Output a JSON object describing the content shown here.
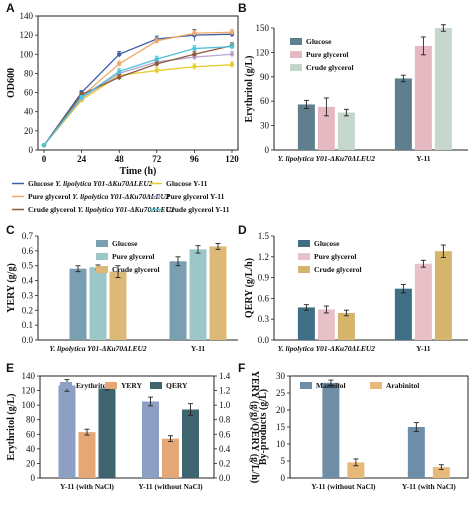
{
  "chart_data": [
    {
      "panel": "A",
      "type": "line",
      "xlabel": "Time (h)",
      "ylabel": "OD600",
      "x": [
        0,
        24,
        48,
        72,
        96,
        120
      ],
      "xlim": [
        0,
        120
      ],
      "ylim": [
        0,
        140
      ],
      "yticks": [
        0,
        20,
        40,
        60,
        80,
        100,
        120,
        140
      ],
      "xticks": [
        0,
        24,
        48,
        72,
        96,
        120
      ],
      "series": [
        {
          "name": "Glucose  Y. lipolytica Y01-ΔKu70ΔLEU2",
          "color": "#3a5fa8",
          "marker": "circle",
          "values": [
            5,
            60,
            100,
            116,
            120,
            121
          ],
          "err": [
            0,
            2,
            3,
            3,
            6,
            3
          ]
        },
        {
          "name": "Glucose  Y-11",
          "color": "#e6cd2e",
          "marker": "circle",
          "values": [
            5,
            52,
            78,
            83,
            87,
            89
          ],
          "err": [
            0,
            2,
            3,
            3,
            3,
            3
          ]
        },
        {
          "name": "Pure glycerol  Y. lipolytica Y01-ΔKu70ΔLEU2",
          "color": "#f0a868",
          "marker": "circle",
          "values": [
            5,
            56,
            90,
            114,
            122,
            123
          ],
          "err": [
            0,
            2,
            3,
            3,
            3,
            3
          ]
        },
        {
          "name": "Pure glycerol  Y-11",
          "color": "#b9a5d6",
          "marker": "circle",
          "values": [
            5,
            54,
            80,
            92,
            97,
            100
          ],
          "err": [
            0,
            2,
            3,
            3,
            3,
            3
          ]
        },
        {
          "name": "Crude glycerol  Y. lipolytica Y01-ΔKu70ΔLEU2",
          "color": "#8c5a3c",
          "marker": "circle",
          "values": [
            5,
            58,
            76,
            90,
            100,
            109
          ],
          "err": [
            0,
            2,
            3,
            3,
            3,
            3
          ]
        },
        {
          "name": "Crude glycerol  Y-11",
          "color": "#4ec2d8",
          "marker": "circle",
          "values": [
            5,
            55,
            82,
            95,
            106,
            108
          ],
          "err": [
            0,
            2,
            3,
            3,
            3,
            3
          ]
        }
      ]
    },
    {
      "panel": "B",
      "type": "bar",
      "ylabel": "Erythritol (g/L)",
      "categories": [
        "Y. lipolytica Y01-ΔKu70ΔLEU2",
        "Y-11"
      ],
      "ylim": [
        0,
        150
      ],
      "yticks": [
        0,
        30,
        60,
        90,
        120,
        150
      ],
      "series": [
        {
          "name": "Glucose",
          "color": "#5f7f8e",
          "values": [
            56,
            88
          ],
          "err": [
            5,
            4
          ]
        },
        {
          "name": "Pure glycerol",
          "color": "#e6b9c2",
          "values": [
            53,
            128
          ],
          "err": [
            11,
            11
          ]
        },
        {
          "name": "Crude glycerol",
          "color": "#c5d6cc",
          "values": [
            46,
            150
          ],
          "err": [
            4,
            4
          ]
        }
      ]
    },
    {
      "panel": "C",
      "type": "bar",
      "ylabel": "YERY (g/g)",
      "categories": [
        "Y. lipolytica Y01-ΔKu70ΔLEU2",
        "Y-11"
      ],
      "ylim": [
        0,
        0.7
      ],
      "yticks": [
        "0.0",
        "0.1",
        "0.2",
        "0.3",
        "0.4",
        "0.5",
        "0.6",
        "0.7"
      ],
      "series": [
        {
          "name": "Glucose",
          "color": "#7a9fb0",
          "values": [
            0.48,
            0.53
          ],
          "err": [
            0.02,
            0.03
          ]
        },
        {
          "name": "Pure glycerol",
          "color": "#9cc7c9",
          "values": [
            0.49,
            0.61
          ],
          "err": [
            0.015,
            0.025
          ]
        },
        {
          "name": "Crude glycerol",
          "color": "#ddb977",
          "values": [
            0.46,
            0.63
          ],
          "err": [
            0.04,
            0.02
          ]
        }
      ]
    },
    {
      "panel": "D",
      "type": "bar",
      "ylabel": "QERY (g/L/h)",
      "categories": [
        "Y. lipolytica Y01-ΔKu70ΔLEU2",
        "Y-11"
      ],
      "ylim": [
        0,
        1.5
      ],
      "yticks": [
        "0.0",
        "0.3",
        "0.6",
        "0.9",
        "1.2",
        "1.5"
      ],
      "series": [
        {
          "name": "Glucose",
          "color": "#3f6f86",
          "values": [
            0.47,
            0.74
          ],
          "err": [
            0.04,
            0.06
          ]
        },
        {
          "name": "Pure glycerol",
          "color": "#e8c0c8",
          "values": [
            0.44,
            1.1
          ],
          "err": [
            0.05,
            0.05
          ]
        },
        {
          "name": "Crude glycerol",
          "color": "#d6b46a",
          "values": [
            0.39,
            1.28
          ],
          "err": [
            0.04,
            0.09
          ]
        }
      ]
    },
    {
      "panel": "E",
      "type": "bar",
      "ylabel": "Erythritol (g/L)",
      "ylabel_right": "YERY (g/g)/QERY (g/L/h)",
      "categories": [
        "Y-11 (with NaCl)",
        "Y-11 (without NaCl)"
      ],
      "ylim": [
        0,
        140
      ],
      "yticks": [
        0,
        20,
        40,
        60,
        80,
        100,
        120,
        140
      ],
      "ylim_right": [
        0,
        1.4
      ],
      "yticks_right": [
        "0.0",
        "0.2",
        "0.4",
        "0.6",
        "0.8",
        "1.0",
        "1.2",
        "1.4"
      ],
      "series": [
        {
          "name": "Erythritol",
          "axis": "left",
          "color": "#8e9fc4",
          "values": [
            127,
            105
          ],
          "err": [
            8,
            6
          ]
        },
        {
          "name": "YERY",
          "axis": "right",
          "color": "#e6a777",
          "values": [
            0.63,
            0.54
          ],
          "err": [
            0.04,
            0.04
          ]
        },
        {
          "name": "QERY",
          "axis": "right",
          "color": "#3e6470",
          "values": [
            1.23,
            0.94
          ],
          "err": [
            0.02,
            0.08
          ]
        }
      ]
    },
    {
      "panel": "F",
      "type": "bar",
      "ylabel": "By-products (g/L)",
      "categories": [
        "Y-11 (without NaCl)",
        "Y-11 (with NaCl)"
      ],
      "ylim": [
        0,
        30
      ],
      "yticks": [
        0,
        5,
        10,
        15,
        20,
        25,
        30
      ],
      "series": [
        {
          "name": "Mannitol",
          "color": "#6e8ea8",
          "values": [
            28,
            15
          ],
          "err": [
            0.8,
            1.3
          ]
        },
        {
          "name": "Arabinitol",
          "color": "#e6b97a",
          "values": [
            4.6,
            3.2
          ],
          "err": [
            1.0,
            0.7
          ]
        }
      ]
    }
  ],
  "panel_labels": [
    "A",
    "B",
    "C",
    "D",
    "E",
    "F"
  ]
}
